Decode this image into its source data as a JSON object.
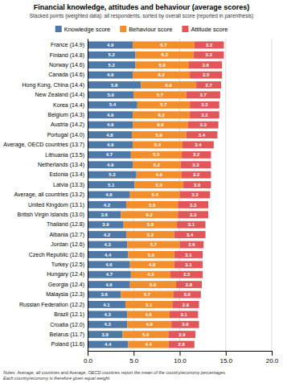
{
  "chart_data": {
    "type": "bar",
    "orientation": "horizontal",
    "stacked": true,
    "title": "Financial knowledge, attitudes and behaviour (average scores)",
    "subtitle": "Stacked points (weighted data): all respondents, sorted by overall score (reported in parenthesis)",
    "annotations": [
      "Notes: Average, all countries and Average, OECD countries report the mean of the country/economy percentages.",
      "Each country/economy is therefore given equal weight."
    ],
    "categories": [
      "France (14.9)",
      "Finland (14.8)",
      "Norway (14.6)",
      "Canada (14.6)",
      "Hong Kong, China (14.4)",
      "New Zealand (14.4)",
      "Korea (14.4)",
      "Belgium (14.3)",
      "Austria (14.2)",
      "Portugal (14.0)",
      "Average, OECD countries (13.7)",
      "Lithuania (13.5)",
      "Netherlands (13.4)",
      "Estonia (13.4)",
      "Latvia (13.3)",
      "Average, all countries (13.2)",
      "United Kingdom (13.1)",
      "British Virgin Islands (13.0)",
      "Thailand (12.8)",
      "Albania (12.7)",
      "Jordan (12.6)",
      "Czech Republic (12.6)",
      "Turkey (12.5)",
      "Hungary (12.4)",
      "Georgia (12.4)",
      "Malaysia (12.3)",
      "Russian Federation (12.2)",
      "Brazil (12.1)",
      "Croatia (12.0)",
      "Belarus (11.7)",
      "Poland (11.6)"
    ],
    "series": [
      {
        "name": "Knowledge score",
        "values": [
          4.9,
          5.2,
          5.2,
          4.9,
          5.8,
          5.0,
          5.4,
          4.9,
          4.9,
          4.8,
          4.9,
          4.7,
          4.9,
          5.3,
          5.1,
          4.6,
          4.2,
          3.6,
          3.9,
          4.2,
          4.3,
          4.4,
          4.6,
          4.7,
          4.6,
          3.6,
          4.1,
          4.3,
          4.3,
          3.8,
          4.4
        ],
        "value_labels": [
          "4.9",
          "5.2",
          "5.2",
          "4.9",
          "5.8",
          "5.0",
          "5.4",
          "4.9",
          "4.9",
          "4.8",
          "4.9",
          "4.7",
          "4.9",
          "5.3",
          "5.1",
          "4.6",
          "4.2",
          "3.6",
          "3.9",
          "4.2",
          "4.3",
          "4.4",
          "4.6",
          "4.7",
          "4.6",
          "3.6",
          "4.1",
          "4.3",
          "4.3",
          "3.8",
          "4.4"
        ]
      },
      {
        "name": "Behaviour score",
        "values": [
          6.7,
          6.3,
          5.8,
          6.2,
          6.0,
          5.7,
          5.7,
          6.2,
          6.0,
          5.9,
          5.4,
          5.5,
          5.2,
          4.9,
          5.3,
          5.4,
          5.6,
          6.2,
          5.8,
          5.2,
          5.7,
          5.0,
          4.8,
          4.3,
          5.0,
          5.7,
          5.1,
          4.6,
          4.8,
          5.0,
          4.4
        ],
        "value_labels": [
          "6.7",
          "6.3",
          "5.8",
          "6.2",
          "6.0",
          "5.7",
          "5.7",
          "6.2",
          "6.0",
          "5.9",
          "5.4",
          "5.5",
          "5.2",
          "4.9",
          "5.3",
          "5.4",
          "5.6",
          "6.2",
          "5.8",
          "5.2",
          "5.7",
          "5.0",
          "4.8",
          "4.3",
          "5.0",
          "5.7",
          "5.1",
          "4.6",
          "4.8",
          "5.0",
          "4.4"
        ]
      },
      {
        "name": "Attitude score",
        "values": [
          3.2,
          3.3,
          3.6,
          3.5,
          2.7,
          3.7,
          3.2,
          3.2,
          3.3,
          3.4,
          3.4,
          3.2,
          3.3,
          3.2,
          3.0,
          3.3,
          3.3,
          3.3,
          3.1,
          3.4,
          2.6,
          3.1,
          3.1,
          3.5,
          2.8,
          3.0,
          2.9,
          3.1,
          3.0,
          2.9,
          2.8
        ],
        "value_labels": [
          "3.2",
          "3.3",
          "3.6",
          "3.5",
          "2.7",
          "3.7",
          "3.2",
          "3.2",
          "3.3",
          "3.4",
          "3.4",
          "3.2",
          "3.3",
          "3.2",
          "3.0",
          "3.3",
          "3.3",
          "3.3",
          "3.1",
          "3.4",
          "2.6",
          "3.1",
          "3.1",
          "3.5",
          "2.8",
          "3.0",
          "2.9",
          "3.1",
          "3.0",
          "2.9",
          "2.8"
        ]
      }
    ],
    "xlim": [
      0,
      20.0
    ],
    "xticks": [
      {
        "value": 0.0,
        "label": "0.0"
      },
      {
        "value": 5.0,
        "label": "5.0"
      },
      {
        "value": 10.0,
        "label": "10.0"
      },
      {
        "value": 15.0,
        "label": "15.0"
      },
      {
        "value": 20.0,
        "label": "20.0"
      }
    ],
    "grid": true,
    "legend": "top",
    "data_labels": true
  }
}
